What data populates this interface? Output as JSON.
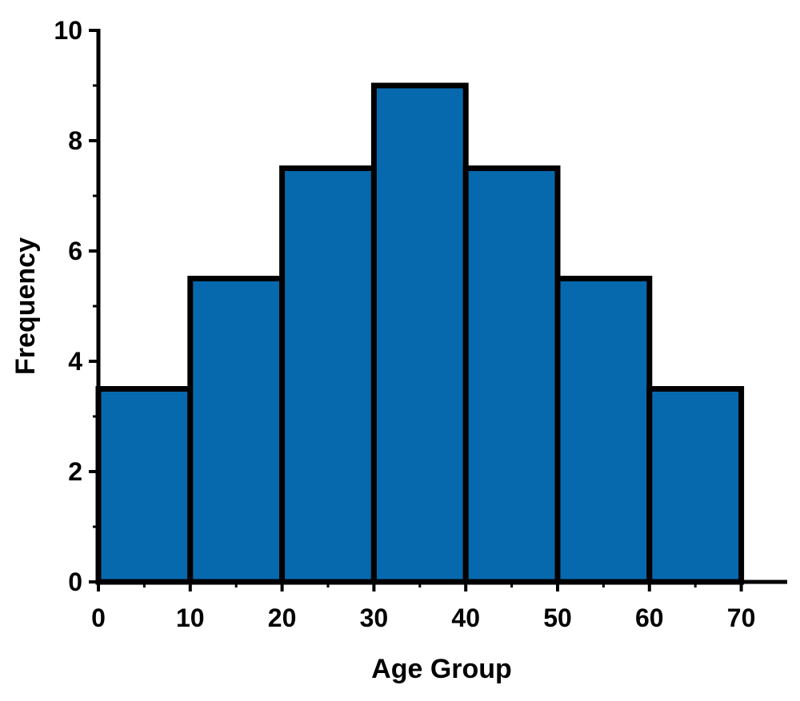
{
  "chart_data": {
    "type": "bar",
    "title": "",
    "xlabel": "Age Group",
    "ylabel": "Frequency",
    "bins": [
      {
        "start": 0,
        "end": 10,
        "value": 3.5
      },
      {
        "start": 10,
        "end": 20,
        "value": 5.5
      },
      {
        "start": 20,
        "end": 30,
        "value": 7.5
      },
      {
        "start": 30,
        "end": 40,
        "value": 9
      },
      {
        "start": 40,
        "end": 50,
        "value": 7.5
      },
      {
        "start": 50,
        "end": 60,
        "value": 5.5
      },
      {
        "start": 60,
        "end": 70,
        "value": 3.5
      }
    ],
    "xlim": [
      0,
      75
    ],
    "ylim": [
      0,
      10
    ],
    "xticks": [
      0,
      10,
      20,
      30,
      40,
      50,
      60,
      70
    ],
    "xtick_labels": [
      "0",
      "10",
      "20",
      "30",
      "40",
      "50",
      "60",
      "70"
    ],
    "yticks": [
      0,
      2,
      4,
      6,
      8,
      10
    ],
    "ytick_labels": [
      "0",
      "2",
      "4",
      "6",
      "8",
      "10"
    ],
    "grid": false,
    "legend": "none",
    "colors": {
      "bar_fill": "#0769ad",
      "bar_edge": "#000000",
      "axis": "#000000"
    }
  }
}
